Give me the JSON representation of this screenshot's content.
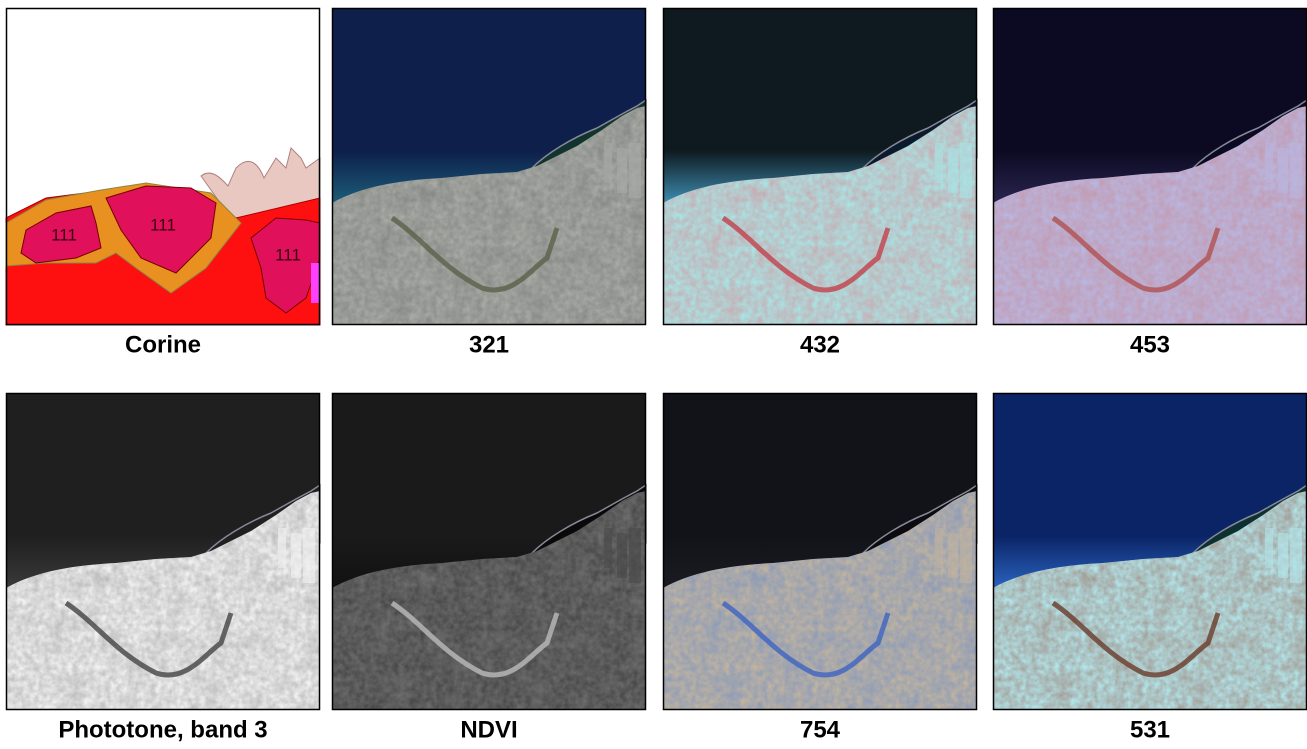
{
  "panels": [
    {
      "label": "Corine",
      "map_labels": [
        "111",
        "111",
        "111"
      ]
    },
    {
      "label": "321"
    },
    {
      "label": "432"
    },
    {
      "label": "453"
    },
    {
      "label": "Phototone, band 3"
    },
    {
      "label": "NDVI"
    },
    {
      "label": "754"
    },
    {
      "label": "531"
    }
  ]
}
